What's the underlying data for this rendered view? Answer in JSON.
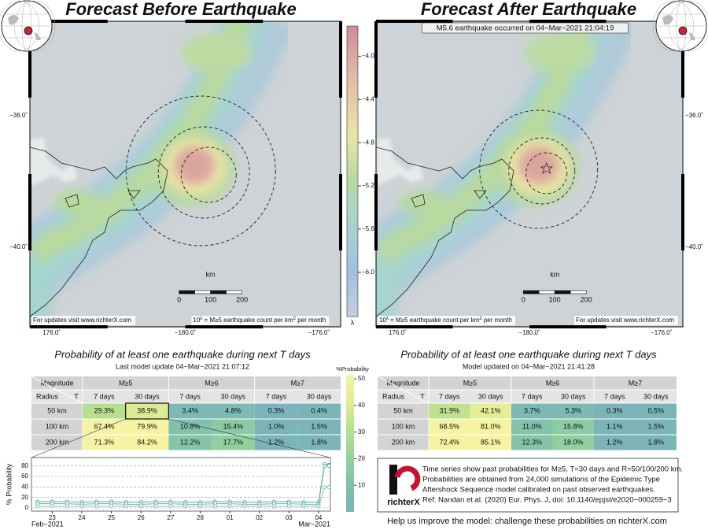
{
  "left_panel": {
    "title": "Forecast Before Earthquake",
    "lat_labels": [
      "−36.0˚",
      "−40.0˚"
    ],
    "lon_labels": [
      "176.0˚",
      "−180.0˚",
      "−176.0˚"
    ],
    "scale_unit": "km",
    "scale_labels": [
      "0",
      "100",
      "200"
    ],
    "footer_url": "For updates visit www.richterX.com",
    "footer_units": [
      "10",
      "λ",
      " = M≥5 earthquake count per km",
      "2",
      " per month"
    ]
  },
  "right_panel": {
    "title": "Forecast After Earthquake",
    "annotation": "M5.6 earthquake occurred on 04−Mar−2021 21:04:19",
    "lat_labels": [
      "−36.0˚",
      "−40.0˚"
    ],
    "lon_labels": [
      "176.0˚",
      "−180.0˚",
      "−176.0˚"
    ],
    "scale_unit": "km",
    "scale_labels": [
      "0",
      "100",
      "200"
    ],
    "footer_url": "For updates visit www.richterX.com",
    "footer_units": [
      "10",
      "λ",
      " = M≥5 earthquake count per km",
      "2",
      " per month"
    ]
  },
  "colorbar": {
    "symbol": "λ",
    "lim": [
      -6.41,
      -3.72
    ],
    "ticks": [
      {
        "value": -4.0,
        "label": "−4.0"
      },
      {
        "value": -4.4,
        "label": "−4.4"
      },
      {
        "value": -4.8,
        "label": "−4.8"
      },
      {
        "value": -5.2,
        "label": "−5.2"
      },
      {
        "value": -5.6,
        "label": "−5.6"
      },
      {
        "value": -6.0,
        "label": "−6.0"
      }
    ]
  },
  "tables": {
    "left": {
      "title": "Probability of at least one earthquake during next T days",
      "subtitle": "Last model update 04−Mar−2021 21:07:12",
      "magnitude_header": "Magnitude",
      "radius_header": "Radius",
      "t_header": "T",
      "magnitudes": [
        "M≥5",
        "M≥6",
        "M≥7"
      ],
      "periods": [
        "7 days",
        "30 days",
        "7 days",
        "30 days",
        "7 days",
        "30 days"
      ],
      "rows": [
        {
          "radius": "50 km",
          "cells": [
            "29.3%",
            "38.9%",
            "3.4%",
            "4.8%",
            "0.3%",
            "0.4%"
          ]
        },
        {
          "radius": "100 km",
          "cells": [
            "67.4%",
            "79.9%",
            "10.8%",
            "15.4%",
            "1.0%",
            "1.5%"
          ]
        },
        {
          "radius": "200 km",
          "cells": [
            "71.3%",
            "84.2%",
            "12.2%",
            "17.7%",
            "1.2%",
            "1.8%"
          ]
        }
      ]
    },
    "right": {
      "title": "Probability of at least one earthquake during next T days",
      "subtitle": "Model updated on 04−Mar−2021 21:41:28",
      "magnitude_header": "Magnitude",
      "radius_header": "Radius",
      "t_header": "T",
      "magnitudes": [
        "M≥5",
        "M≥6",
        "M≥7"
      ],
      "periods": [
        "7 days",
        "30 days",
        "7 days",
        "30 days",
        "7 days",
        "30 days"
      ],
      "rows": [
        {
          "radius": "50 km",
          "cells": [
            "31.9%",
            "42.1%",
            "3.7%",
            "5.3%",
            "0.3%",
            "0.5%"
          ]
        },
        {
          "radius": "100 km",
          "cells": [
            "68.5%",
            "81.0%",
            "11.0%",
            "15.8%",
            "1.1%",
            "1.5%"
          ]
        },
        {
          "radius": "200 km",
          "cells": [
            "72.4%",
            "85.1%",
            "12.3%",
            "18.0%",
            "1.2%",
            "1.8%"
          ]
        }
      ]
    }
  },
  "probability_colorbar": {
    "label": "%Probability",
    "lim": [
      0,
      51.5
    ],
    "ticks": [
      10,
      20,
      30,
      40,
      50
    ]
  },
  "timeseries": {
    "type": "line",
    "ylabel": "% Probability",
    "ylim": [
      0,
      90
    ],
    "yticks": [
      0,
      20,
      40,
      60,
      80
    ],
    "xlim": [
      -0.7,
      9.4
    ],
    "xticks": [
      {
        "value": 0,
        "label": "23"
      },
      {
        "value": 1,
        "label": "24"
      },
      {
        "value": 2,
        "label": "25"
      },
      {
        "value": 3,
        "label": "26"
      },
      {
        "value": 4,
        "label": "27"
      },
      {
        "value": 5,
        "label": "28"
      },
      {
        "value": 6,
        "label": "01"
      },
      {
        "value": 7,
        "label": "02"
      },
      {
        "value": 8,
        "label": "03"
      },
      {
        "value": 9,
        "label": "04"
      }
    ],
    "month_labels": [
      "Feb−2021",
      "Mar−2021"
    ],
    "x": [
      -0.5,
      0,
      0.5,
      1,
      1.5,
      2,
      2.5,
      3,
      3.5,
      4,
      4.5,
      5,
      5.5,
      6,
      6.5,
      7,
      7.5,
      8,
      8.5,
      9,
      9.2,
      9.35
    ],
    "series": [
      {
        "color": "#5ea9a2",
        "values": [
          12,
          12,
          12,
          11,
          12,
          12,
          11,
          11,
          12,
          12,
          11,
          11,
          12,
          12,
          11,
          11,
          12,
          12,
          11,
          11,
          84,
          82
        ]
      },
      {
        "color": "#6fb5ad",
        "values": [
          8,
          8,
          8,
          7,
          8,
          8,
          7,
          7,
          8,
          8,
          7,
          7,
          8,
          8,
          7,
          7,
          8,
          8,
          7,
          7,
          80,
          80
        ]
      },
      {
        "color": "#86c2b8",
        "values": [
          3,
          3,
          3,
          3,
          3,
          3,
          3,
          3,
          3,
          3,
          3,
          3,
          3,
          3,
          3,
          3,
          3,
          3,
          3,
          3,
          39,
          40
        ]
      }
    ]
  },
  "info": {
    "lines": [
      "Time series show past probabilities for M≥5, T=30 days and R=50/100/200 km.",
      "Probabilities are obtained from 24,000 simulations of the Epidemic Type",
      "Aftershock Sequence model calibrated on past observed earthquakes.",
      "Ref: Nandan et.al. (2020) Eur. Phys. J, doi: 10.1140/epjst/e2020−000259−3"
    ],
    "logo": "richterX",
    "help": "Help us improve the model: challenge these probabilities on richterX.com"
  }
}
